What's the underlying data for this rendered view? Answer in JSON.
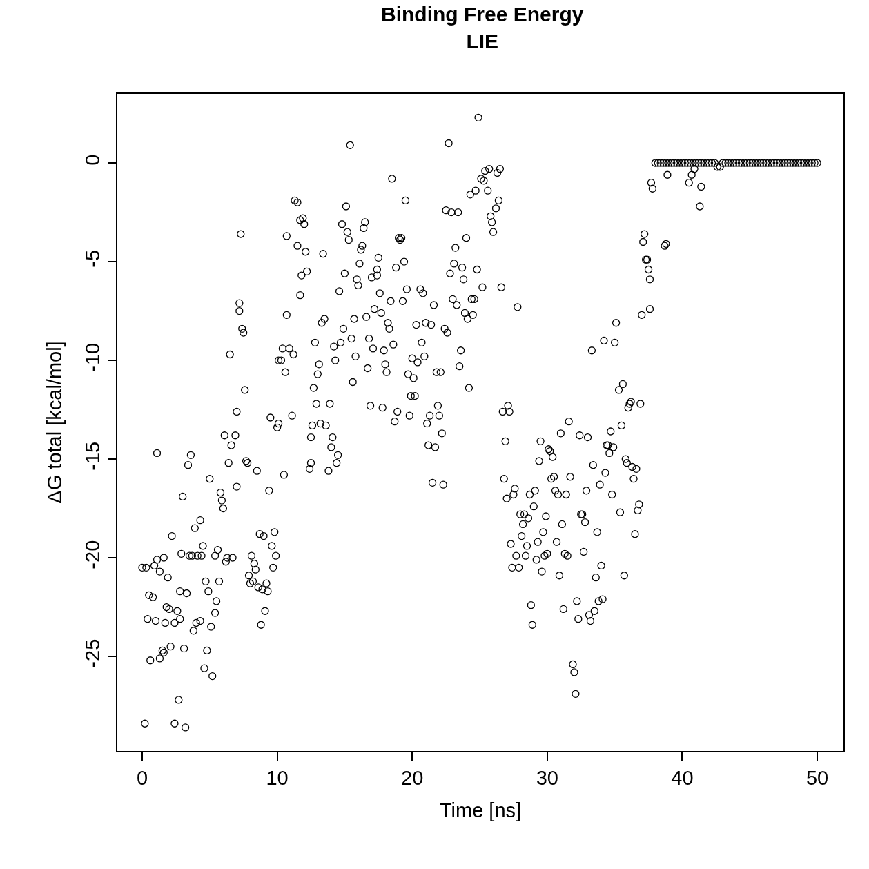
{
  "chart_data": {
    "type": "scatter",
    "title": "Binding Free Energy",
    "subtitle": "LIE",
    "xlabel": "Time [ns]",
    "ylabel": "ΔG total [kcal/mol]",
    "color": "#000000",
    "marker": "circle",
    "xlim": [
      -1.84,
      51.94
    ],
    "ylim": [
      -29.79,
      3.5
    ],
    "xticks": [
      0,
      10,
      20,
      30,
      40,
      50
    ],
    "yticks": [
      -25,
      -20,
      -15,
      -10,
      -5,
      0
    ],
    "x": [
      0,
      0.3,
      0.2,
      0.4,
      0.5,
      0.8,
      0.6,
      0.9,
      1.0,
      1.1,
      1.1,
      1.3,
      1.3,
      1.5,
      1.6,
      1.6,
      1.7,
      1.8,
      1.9,
      2.0,
      2.1,
      2.2,
      2.4,
      2.4,
      2.6,
      2.7,
      2.8,
      2.8,
      2.9,
      3.0,
      3.1,
      3.2,
      3.3,
      3.4,
      3.5,
      3.6,
      3.7,
      3.8,
      3.9,
      4.0,
      4.1,
      4.3,
      4.3,
      4.4,
      4.5,
      4.6,
      4.7,
      4.8,
      4.9,
      5.0,
      5.1,
      5.2,
      5.4,
      5.4,
      5.5,
      5.6,
      5.7,
      5.8,
      5.9,
      6.0,
      6.1,
      6.2,
      6.3,
      6.4,
      6.5,
      6.6,
      6.7,
      6.9,
      7.0,
      7.0,
      7.2,
      7.2,
      7.3,
      7.4,
      7.5,
      7.6,
      7.7,
      7.8,
      7.9,
      8.0,
      8.1,
      8.2,
      8.3,
      8.4,
      8.5,
      8.6,
      8.7,
      8.8,
      8.9,
      9.0,
      9.1,
      9.2,
      9.3,
      9.4,
      9.5,
      9.6,
      9.7,
      9.8,
      9.9,
      10.0,
      10.1,
      10.1,
      10.3,
      10.4,
      10.5,
      10.6,
      10.7,
      10.7,
      10.9,
      11.1,
      11.2,
      11.3,
      11.5,
      11.5,
      11.7,
      11.7,
      11.8,
      11.9,
      12.0,
      12.1,
      12.2,
      12.5,
      12.4,
      12.5,
      12.6,
      12.7,
      12.8,
      12.9,
      13.0,
      13.1,
      13.2,
      13.3,
      13.4,
      13.5,
      13.6,
      13.8,
      13.9,
      14.0,
      14.1,
      14.2,
      14.3,
      14.4,
      14.5,
      14.6,
      14.7,
      14.8,
      14.9,
      15.0,
      15.1,
      15.2,
      15.3,
      15.4,
      15.5,
      15.6,
      15.7,
      15.8,
      15.9,
      16.0,
      16.1,
      16.2,
      16.3,
      16.4,
      16.5,
      16.6,
      16.7,
      16.8,
      16.9,
      17.0,
      17.1,
      17.2,
      17.4,
      17.4,
      17.5,
      17.6,
      17.7,
      17.8,
      17.9,
      18.0,
      18.1,
      18.2,
      18.3,
      18.4,
      18.5,
      18.6,
      18.7,
      18.8,
      18.9,
      19.0,
      19.1,
      19.2,
      19.3,
      19.4,
      19.5,
      19.6,
      19.7,
      19.8,
      19.9,
      20.0,
      20.1,
      20.2,
      20.3,
      20.4,
      20.6,
      20.7,
      20.8,
      20.9,
      21.0,
      21.1,
      21.2,
      21.3,
      21.4,
      21.5,
      21.6,
      21.7,
      21.8,
      21.9,
      22.0,
      22.1,
      22.2,
      22.3,
      22.4,
      22.5,
      22.6,
      22.7,
      22.8,
      22.9,
      23.0,
      23.1,
      23.2,
      23.3,
      23.4,
      23.5,
      23.6,
      23.7,
      23.8,
      23.9,
      24.0,
      24.1,
      24.2,
      24.3,
      24.4,
      24.5,
      24.6,
      24.7,
      24.8,
      24.9,
      25.1,
      25.2,
      25.3,
      25.4,
      25.6,
      25.7,
      25.8,
      25.9,
      26.0,
      26.2,
      26.3,
      26.4,
      26.5,
      26.6,
      26.7,
      26.8,
      26.9,
      27.0,
      27.1,
      27.2,
      27.3,
      27.4,
      27.5,
      27.6,
      27.7,
      27.8,
      27.9,
      28.0,
      28.1,
      28.2,
      28.3,
      28.4,
      28.5,
      28.6,
      28.7,
      28.8,
      28.9,
      29.0,
      29.1,
      29.2,
      29.3,
      29.4,
      29.5,
      29.6,
      29.7,
      29.8,
      29.9,
      30.0,
      30.1,
      30.2,
      30.3,
      30.4,
      30.5,
      30.6,
      30.7,
      30.8,
      30.9,
      31.0,
      31.1,
      31.2,
      31.3,
      31.4,
      31.5,
      31.6,
      31.7,
      31.9,
      32.0,
      32.1,
      32.2,
      32.3,
      32.4,
      32.5,
      32.6,
      32.7,
      32.8,
      32.9,
      33.0,
      33.1,
      33.2,
      33.3,
      33.4,
      33.5,
      33.6,
      33.7,
      33.8,
      33.9,
      34.0,
      34.1,
      34.2,
      34.3,
      34.4,
      34.5,
      34.6,
      34.7,
      34.8,
      34.9,
      35.0,
      35.1,
      35.3,
      35.4,
      35.5,
      35.6,
      35.7,
      35.8,
      35.9,
      36.0,
      36.1,
      36.2,
      36.3,
      36.4,
      36.5,
      36.6,
      36.7,
      36.8,
      36.9,
      37.0,
      37.1,
      37.2,
      37.3,
      37.4,
      37.5,
      37.6,
      37.6,
      37.7,
      37.8,
      38.9,
      38.7,
      38.8,
      40.5,
      40.7,
      40.9,
      41.3,
      41.4,
      38.0,
      38.2,
      38.4,
      38.6,
      38.8,
      39.0,
      39.2,
      39.4,
      39.6,
      39.8,
      40.0,
      40.2,
      40.4,
      40.6,
      40.8,
      41.0,
      41.2,
      41.4,
      41.6,
      41.8,
      42.0,
      42.2,
      42.4,
      42.6,
      42.8,
      43.0,
      43.2,
      43.4,
      43.6,
      43.8,
      44.0,
      44.2,
      44.4,
      44.6,
      44.8,
      45.0,
      45.2,
      45.4,
      45.6,
      45.8,
      46.0,
      46.2,
      46.4,
      46.6,
      46.8,
      47.0,
      47.2,
      47.4,
      47.6,
      47.8,
      48.0,
      48.2,
      48.4,
      48.6,
      48.8,
      49.0,
      49.2,
      49.4,
      49.6,
      49.8,
      50.0
    ],
    "values": [
      -20.5,
      -20.5,
      -28.4,
      -23.1,
      -21.9,
      -22.0,
      -25.2,
      -20.4,
      -23.2,
      -14.7,
      -20.1,
      -25.1,
      -20.7,
      -24.7,
      -24.8,
      -20.0,
      -23.3,
      -22.5,
      -21.0,
      -22.6,
      -24.5,
      -18.9,
      -28.4,
      -23.3,
      -22.7,
      -27.2,
      -23.1,
      -21.7,
      -19.8,
      -16.9,
      -24.6,
      -28.6,
      -21.8,
      -15.3,
      -19.9,
      -14.8,
      -19.9,
      -23.7,
      -18.5,
      -23.3,
      -19.9,
      -23.2,
      -18.1,
      -19.9,
      -19.4,
      -25.6,
      -21.2,
      -24.7,
      -21.7,
      -16.0,
      -23.5,
      -26.0,
      -22.8,
      -19.9,
      -22.2,
      -19.6,
      -21.2,
      -16.7,
      -17.1,
      -17.5,
      -13.8,
      -20.2,
      -20.0,
      -15.2,
      -9.7,
      -14.3,
      -20.0,
      -13.8,
      -16.4,
      -12.6,
      -7.5,
      -7.1,
      -3.6,
      -8.4,
      -8.6,
      -11.5,
      -15.1,
      -15.2,
      -20.9,
      -21.3,
      -19.9,
      -21.2,
      -20.3,
      -20.6,
      -15.6,
      -21.5,
      -18.8,
      -23.4,
      -21.6,
      -18.9,
      -22.7,
      -21.3,
      -21.7,
      -16.6,
      -12.9,
      -19.4,
      -20.5,
      -18.7,
      -19.9,
      -13.4,
      -13.2,
      -10.0,
      -10.0,
      -9.4,
      -15.8,
      -10.6,
      -7.7,
      -3.7,
      -9.4,
      -12.8,
      -9.7,
      -1.9,
      -4.2,
      -2.0,
      -2.9,
      -6.7,
      -5.7,
      -2.8,
      -3.1,
      -4.5,
      -5.5,
      -15.2,
      -15.5,
      -13.9,
      -13.3,
      -11.4,
      -9.1,
      -12.2,
      -10.7,
      -10.2,
      -13.2,
      -8.1,
      -4.6,
      -7.9,
      -13.3,
      -15.6,
      -12.2,
      -14.4,
      -13.9,
      -9.3,
      -10.0,
      -15.2,
      -14.8,
      -6.5,
      -9.1,
      -3.1,
      -8.4,
      -5.6,
      -2.2,
      -3.5,
      -3.9,
      0.9,
      -8.9,
      -11.1,
      -7.9,
      -9.8,
      -5.9,
      -6.2,
      -5.1,
      -4.4,
      -4.2,
      -3.3,
      -3.0,
      -7.8,
      -10.4,
      -8.9,
      -12.3,
      -5.8,
      -9.4,
      -7.4,
      -5.4,
      -5.7,
      -4.8,
      -6.6,
      -7.6,
      -12.4,
      -9.5,
      -10.2,
      -10.6,
      -8.1,
      -8.4,
      -7.0,
      -0.8,
      -9.2,
      -13.1,
      -5.3,
      -12.6,
      -3.8,
      -3.9,
      -3.8,
      -7.0,
      -5.0,
      -1.9,
      -6.4,
      -10.7,
      -12.8,
      -11.8,
      -9.9,
      -10.9,
      -11.8,
      -8.2,
      -10.1,
      -6.4,
      -9.1,
      -6.6,
      -9.8,
      -8.1,
      -13.2,
      -14.3,
      -12.8,
      -8.2,
      -16.2,
      -7.2,
      -14.4,
      -10.6,
      -12.3,
      -12.8,
      -10.6,
      -13.7,
      -16.3,
      -8.4,
      -2.4,
      -8.6,
      1.0,
      -5.6,
      -2.5,
      -6.9,
      -5.1,
      -4.3,
      -7.2,
      -2.5,
      -10.3,
      -9.5,
      -5.3,
      -5.9,
      -7.6,
      -3.8,
      -7.9,
      -11.4,
      -1.6,
      -6.9,
      -7.7,
      -6.9,
      -1.4,
      -5.4,
      2.3,
      -0.8,
      -6.3,
      -0.9,
      -0.4,
      -1.4,
      -0.3,
      -2.7,
      -3.0,
      -3.5,
      -2.3,
      -0.5,
      -1.9,
      -0.3,
      -6.3,
      -12.6,
      -16.0,
      -14.1,
      -17.0,
      -12.3,
      -12.6,
      -19.3,
      -20.5,
      -16.8,
      -16.5,
      -19.9,
      -7.3,
      -20.5,
      -17.8,
      -18.9,
      -18.3,
      -17.8,
      -19.9,
      -19.4,
      -18.0,
      -16.8,
      -22.4,
      -23.4,
      -17.4,
      -16.6,
      -20.1,
      -19.2,
      -15.1,
      -14.1,
      -20.7,
      -18.7,
      -19.9,
      -17.9,
      -19.8,
      -14.5,
      -14.6,
      -16.0,
      -14.9,
      -15.9,
      -16.6,
      -19.2,
      -16.8,
      -20.9,
      -13.7,
      -18.3,
      -22.6,
      -19.8,
      -16.8,
      -19.9,
      -13.1,
      -15.9,
      -25.4,
      -25.8,
      -26.9,
      -22.2,
      -23.1,
      -13.8,
      -17.8,
      -17.8,
      -19.7,
      -18.2,
      -16.6,
      -13.9,
      -22.9,
      -23.2,
      -9.5,
      -15.3,
      -22.7,
      -21.0,
      -18.7,
      -22.2,
      -16.3,
      -20.4,
      -22.1,
      -9.0,
      -15.7,
      -14.3,
      -14.3,
      -14.7,
      -13.6,
      -16.8,
      -14.4,
      -9.1,
      -8.1,
      -11.5,
      -17.7,
      -13.3,
      -11.2,
      -20.9,
      -15.0,
      -15.2,
      -12.4,
      -12.2,
      -12.1,
      -15.4,
      -16.0,
      -18.8,
      -15.5,
      -17.6,
      -17.3,
      -12.2,
      -7.7,
      -4.0,
      -3.6,
      -4.9,
      -4.9,
      -5.4,
      -7.4,
      -5.9,
      -1.0,
      -1.3,
      -0.6,
      -4.2,
      -4.1,
      -1.0,
      -0.6,
      -0.3,
      -2.2,
      -1.2,
      0,
      0,
      0,
      0,
      0,
      0,
      0,
      0,
      0,
      0,
      0,
      0,
      0,
      0,
      0,
      0,
      0,
      0,
      0,
      0,
      0,
      0,
      0,
      -0.2,
      -0.2,
      0,
      0,
      0,
      0,
      0,
      0,
      0,
      0,
      0,
      0,
      0,
      0,
      0,
      0,
      0,
      0,
      0,
      0,
      0,
      0,
      0,
      0,
      0,
      0,
      0,
      0,
      0,
      0,
      0,
      0,
      0,
      0,
      0,
      0,
      0,
      0
    ]
  }
}
